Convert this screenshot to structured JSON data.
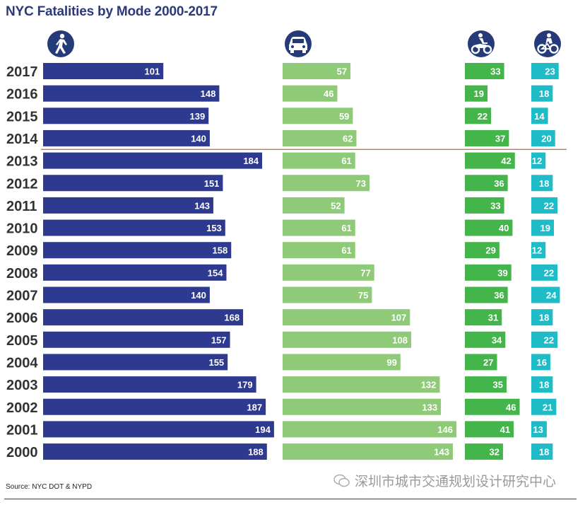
{
  "colors": {
    "pedestrian": "#2e3a8f",
    "motorist": "#8fca78",
    "motorcyclist": "#44b54a",
    "cyclist": "#1fbcc8",
    "icon_bg": "#253a78",
    "divider": "#c8643a"
  },
  "icons": {
    "pedestrian": "pedestrian-icon",
    "motorist": "car-icon",
    "motorcyclist": "motorcycle-icon",
    "cyclist": "bicycle-icon"
  },
  "chart_data": {
    "type": "bar",
    "orientation": "horizontal",
    "title": "NYC Fatalities by Mode 2000-2017",
    "categories": [
      "2017",
      "2016",
      "2015",
      "2014",
      "2013",
      "2012",
      "2011",
      "2010",
      "2009",
      "2008",
      "2007",
      "2006",
      "2005",
      "2004",
      "2003",
      "2002",
      "2001",
      "2000"
    ],
    "series": [
      {
        "name": "Pedestrian",
        "values": [
          101,
          148,
          139,
          140,
          184,
          151,
          143,
          153,
          158,
          154,
          140,
          168,
          157,
          155,
          179,
          187,
          194,
          188
        ]
      },
      {
        "name": "Motorist/Passenger",
        "values": [
          57,
          46,
          59,
          62,
          61,
          73,
          52,
          61,
          61,
          77,
          75,
          107,
          108,
          99,
          132,
          133,
          146,
          143
        ]
      },
      {
        "name": "Motorcyclist",
        "values": [
          33,
          19,
          22,
          37,
          42,
          36,
          33,
          40,
          29,
          39,
          36,
          31,
          34,
          27,
          35,
          46,
          41,
          32
        ]
      },
      {
        "name": "Cyclist",
        "values": [
          23,
          18,
          14,
          20,
          12,
          18,
          22,
          19,
          12,
          22,
          24,
          18,
          22,
          16,
          18,
          21,
          13,
          18
        ]
      }
    ],
    "divider_between": [
      "2014",
      "2013"
    ],
    "xlabel": "",
    "ylabel": "",
    "grid": false,
    "legend": "icons above each column"
  },
  "footer": {
    "source": "Source: NYC DOT & NYPD",
    "watermark": "深圳市城市交通规划设计研究中心"
  }
}
